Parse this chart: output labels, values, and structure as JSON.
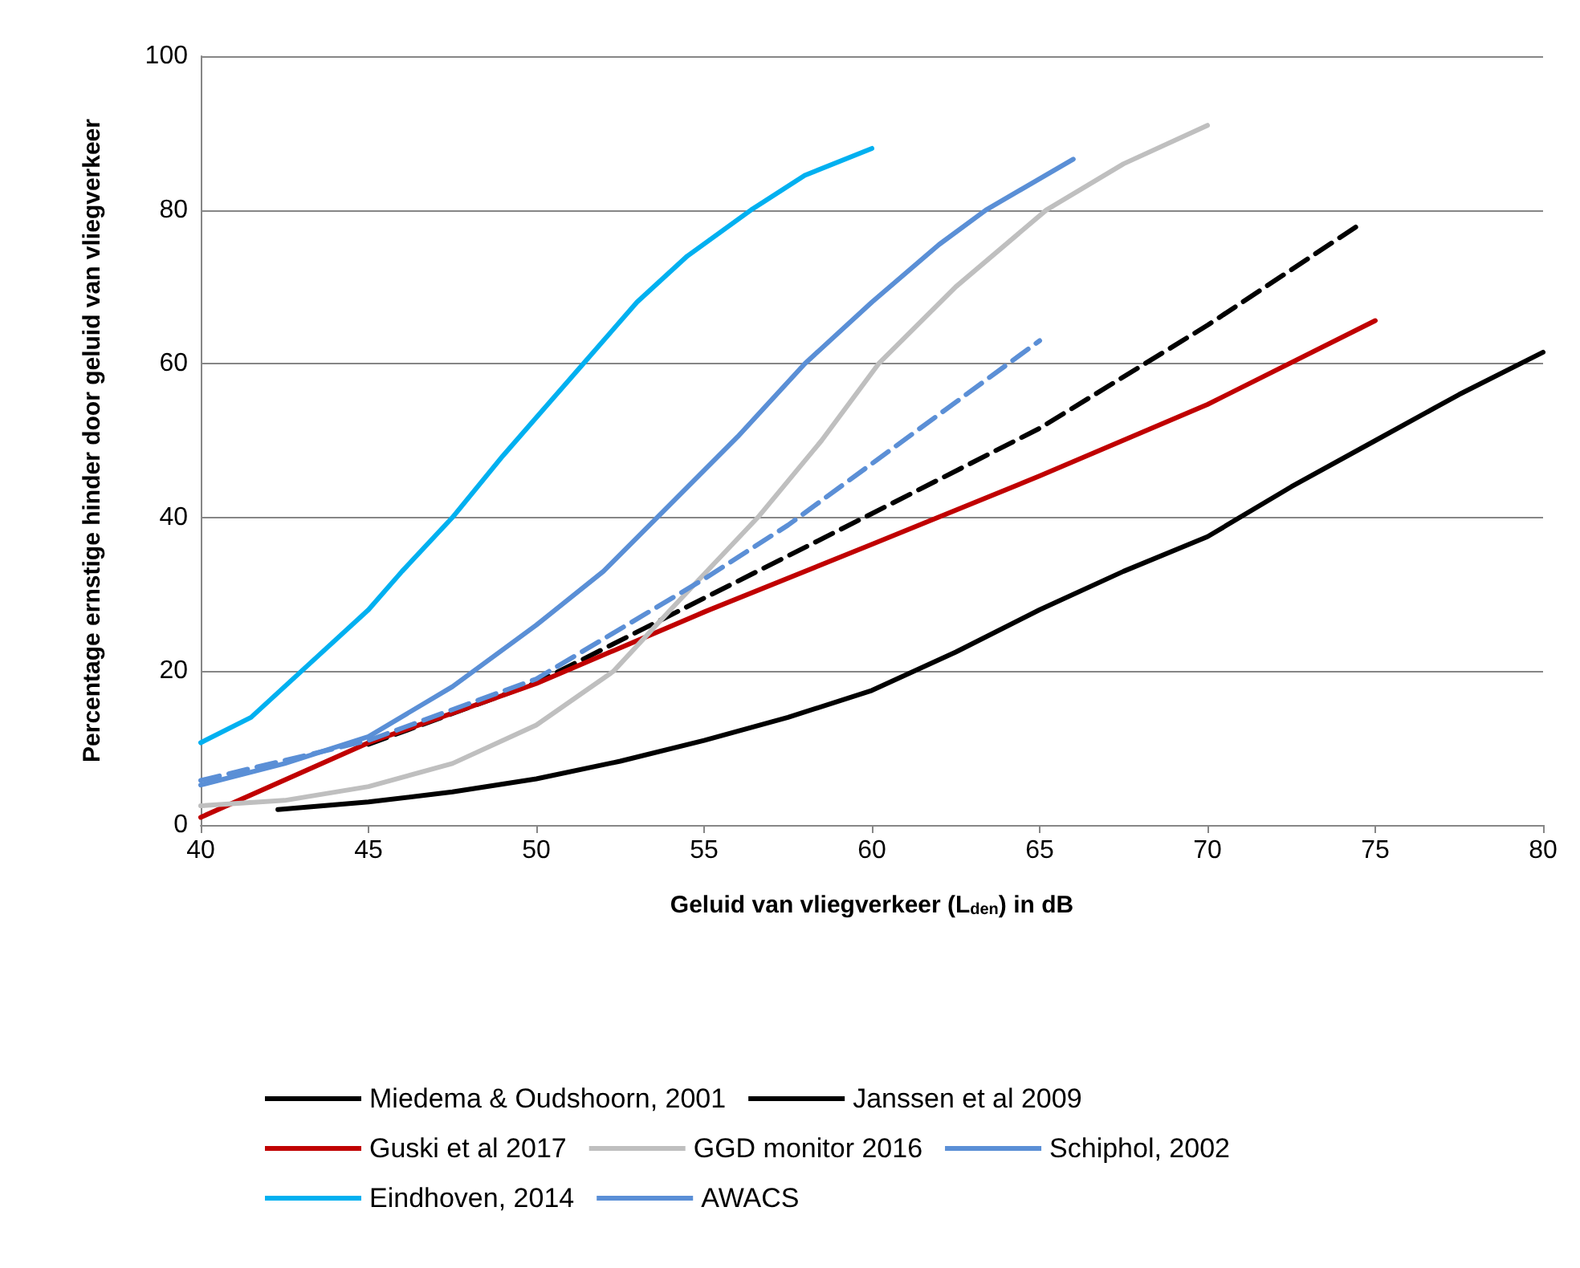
{
  "chart_data": {
    "type": "line",
    "xlabel": "Geluid van vliegverkeer (L$_{den}$) in dB",
    "ylabel": "Percentage ernstige hinder door geluid van vliegverkeer",
    "xlim": [
      40,
      80
    ],
    "xticks": [
      40,
      45,
      50,
      55,
      60,
      65,
      70,
      75,
      80
    ],
    "ylim": [
      0,
      100
    ],
    "yticks": [
      0,
      20,
      40,
      60,
      80,
      100
    ],
    "grid": "y",
    "legend": "bottom",
    "marker": "none",
    "series": [
      {
        "name": "Miedema & Oudshoorn, 2001",
        "color": "#000000",
        "line_style": "solid",
        "x": [
          42.3,
          45,
          47.5,
          50,
          52.5,
          55,
          57.5,
          60,
          62.5,
          65,
          67.5,
          70,
          72.5,
          75,
          77.5,
          80
        ],
        "values": [
          2,
          3,
          4.3,
          6,
          8.3,
          11,
          14,
          17.5,
          22.5,
          28,
          33,
          37.5,
          44,
          50,
          56,
          61.5
        ]
      },
      {
        "name": "Janssen et al 2009",
        "color": "#000000",
        "line_style": "dashed",
        "x": [
          45,
          50,
          55,
          60,
          65,
          70,
          74.6
        ],
        "values": [
          10.5,
          18.5,
          29.5,
          40.5,
          51.6,
          65,
          78.3
        ]
      },
      {
        "name": "Guski et al 2017",
        "color": "#c00000",
        "line_style": "solid",
        "x": [
          40,
          45,
          50,
          55,
          60,
          65,
          70,
          75
        ],
        "values": [
          1,
          10.7,
          18.4,
          27.7,
          36.5,
          45.4,
          54.7,
          65.6
        ]
      },
      {
        "name": "GGD monitor 2016",
        "color": "#bfbfbf",
        "line_style": "solid",
        "x": [
          40,
          42.5,
          45,
          47.5,
          50,
          52.3,
          54,
          56.6,
          58.5,
          60.2,
          62.5,
          65.2,
          67.5,
          70
        ],
        "values": [
          2.5,
          3.2,
          5,
          8,
          13,
          20,
          28,
          40,
          50,
          60,
          70,
          80,
          86,
          91
        ]
      },
      {
        "name": "Schiphol, 2002",
        "color": "#5b8fd6",
        "line_style": "dashed",
        "x": [
          40,
          45,
          50,
          55,
          57.5,
          60,
          62.5,
          65
        ],
        "values": [
          5.8,
          11,
          19,
          32,
          39,
          47,
          55,
          63
        ]
      },
      {
        "name": "Eindhoven, 2014",
        "color": "#00b0f0",
        "line_style": "solid",
        "x": [
          40,
          41.5,
          43,
          45,
          46,
          47.5,
          49,
          50,
          51.4,
          53,
          54.5,
          56.4,
          58,
          60
        ],
        "values": [
          10.7,
          14,
          20,
          28,
          33,
          40,
          48,
          53,
          60,
          68,
          74,
          80,
          84.5,
          88
        ]
      },
      {
        "name": "AWACS",
        "color": "#5a8fd6",
        "line_style": "solid",
        "x": [
          40,
          42.5,
          45,
          47.5,
          50,
          52,
          53.6,
          56,
          58,
          60,
          62,
          63.4,
          66
        ],
        "values": [
          5.2,
          8,
          11.5,
          18,
          26,
          33,
          40,
          50.5,
          60,
          68,
          75.5,
          80,
          86.6
        ]
      }
    ]
  }
}
